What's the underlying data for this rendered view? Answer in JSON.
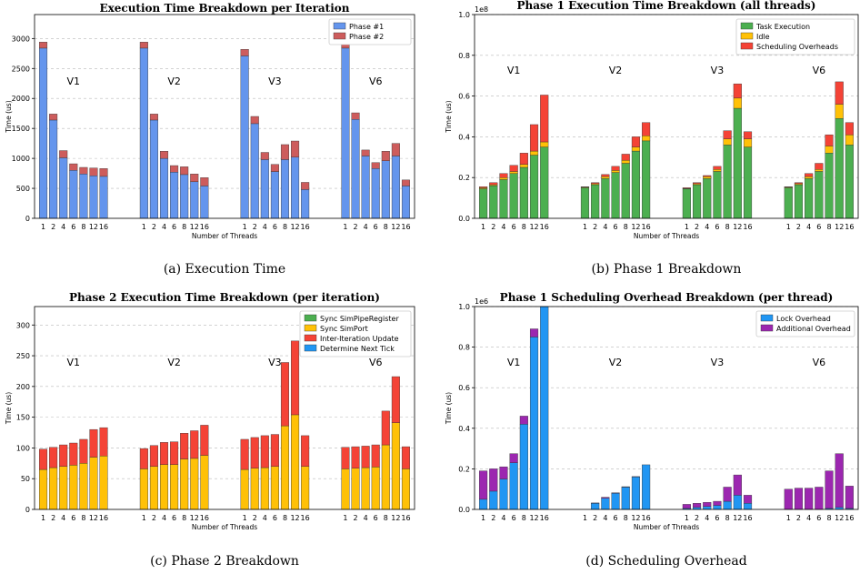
{
  "chart_data": [
    {
      "type": "bar",
      "stacked": true,
      "title": "Execution Time Breakdown per Iteration",
      "xlabel": "Number of Threads",
      "ylabel": "Time (us)",
      "ylim": [
        0,
        3400
      ],
      "yticks": [
        0,
        500,
        1000,
        1500,
        2000,
        2500,
        3000
      ],
      "ytick_labels": [
        "0",
        "500",
        "1000",
        "1500",
        "2000",
        "2500",
        "3000"
      ],
      "scale_label": "",
      "grid": true,
      "legend": "top-right",
      "categories": [
        "1",
        "2",
        "4",
        "6",
        "8",
        "12",
        "16"
      ],
      "groups": [
        "V1",
        "V2",
        "V3",
        "V6"
      ],
      "series": [
        {
          "name": "Phase #1",
          "color": "#6495ed",
          "values": [
            [
              2840,
              1640,
              1010,
              800,
              740,
              710,
              700
            ],
            [
              2840,
              1640,
              1000,
              770,
              730,
              610,
              540
            ],
            [
              2710,
              1580,
              980,
              780,
              980,
              1020,
              480
            ],
            [
              2840,
              1650,
              1040,
              830,
              960,
              1040,
              540
            ]
          ]
        },
        {
          "name": "Phase #2",
          "color": "#cd5c5c",
          "values": [
            [
              100,
              100,
              120,
              110,
              110,
              130,
              130
            ],
            [
              100,
              100,
              120,
              110,
              130,
              130,
              140
            ],
            [
              110,
              120,
              120,
              120,
              250,
              270,
              120
            ],
            [
              100,
              110,
              100,
              100,
              160,
              210,
              100
            ]
          ]
        }
      ],
      "caption": "(a) Execution Time"
    },
    {
      "type": "bar",
      "stacked": true,
      "title": "Phase 1 Execution Time Breakdown (all threads)",
      "xlabel": "Number of Threads",
      "ylabel": "Time (us)",
      "ylim": [
        0,
        1.0
      ],
      "yticks": [
        0,
        0.2,
        0.4,
        0.6,
        0.8,
        1.0
      ],
      "ytick_labels": [
        "0.0",
        "0.2",
        "0.4",
        "0.6",
        "0.8",
        "1.0"
      ],
      "scale_label": "1e8",
      "grid": true,
      "legend": "top-right",
      "categories": [
        "1",
        "2",
        "4",
        "6",
        "8",
        "12",
        "16"
      ],
      "groups": [
        "V1",
        "V2",
        "V3",
        "V6"
      ],
      "series": [
        {
          "name": "Task Execution",
          "color": "#4caf50",
          "values": [
            [
              0.145,
              0.16,
              0.19,
              0.22,
              0.25,
              0.31,
              0.35
            ],
            [
              0.15,
              0.165,
              0.195,
              0.225,
              0.27,
              0.33,
              0.38
            ],
            [
              0.145,
              0.165,
              0.195,
              0.23,
              0.36,
              0.54,
              0.35
            ],
            [
              0.15,
              0.165,
              0.195,
              0.23,
              0.32,
              0.49,
              0.36
            ]
          ]
        },
        {
          "name": "Idle",
          "color": "#ffc107",
          "values": [
            [
              0.005,
              0.005,
              0.01,
              0.01,
              0.015,
              0.02,
              0.025
            ],
            [
              0.003,
              0.005,
              0.01,
              0.01,
              0.015,
              0.02,
              0.025
            ],
            [
              0.002,
              0.005,
              0.01,
              0.01,
              0.03,
              0.05,
              0.04
            ],
            [
              0.003,
              0.005,
              0.01,
              0.01,
              0.035,
              0.07,
              0.05
            ]
          ]
        },
        {
          "name": "Scheduling Overheads",
          "color": "#f44336",
          "values": [
            [
              0.005,
              0.01,
              0.02,
              0.03,
              0.055,
              0.13,
              0.23
            ],
            [
              0.002,
              0.005,
              0.01,
              0.02,
              0.03,
              0.05,
              0.065
            ],
            [
              0.003,
              0.005,
              0.005,
              0.015,
              0.04,
              0.07,
              0.035
            ],
            [
              0.002,
              0.005,
              0.015,
              0.03,
              0.055,
              0.11,
              0.06
            ]
          ]
        }
      ],
      "caption": "(b) Phase 1 Breakdown"
    },
    {
      "type": "bar",
      "stacked": true,
      "title": "Phase 2 Execution Time Breakdown (per iteration)",
      "xlabel": "Number of Threads",
      "ylabel": "Time (us)",
      "ylim": [
        0,
        330
      ],
      "yticks": [
        0,
        50,
        100,
        150,
        200,
        250,
        300
      ],
      "ytick_labels": [
        "0",
        "50",
        "100",
        "150",
        "200",
        "250",
        "300"
      ],
      "scale_label": "",
      "grid": true,
      "legend": "top-right",
      "categories": [
        "1",
        "2",
        "4",
        "6",
        "8",
        "12",
        "16"
      ],
      "groups": [
        "V1",
        "V2",
        "V3",
        "V6"
      ],
      "series": [
        {
          "name": "Sync SimPipeRegister",
          "color": "#4caf50",
          "values": [
            [
              0,
              0,
              0,
              0,
              0,
              0,
              0
            ],
            [
              0,
              0,
              0,
              0,
              0,
              0,
              0
            ],
            [
              0,
              0,
              0,
              0,
              0,
              0,
              0
            ],
            [
              0,
              0,
              0,
              0,
              0,
              0,
              0
            ]
          ]
        },
        {
          "name": "Sync SimPort",
          "color": "#ffc107",
          "values": [
            [
              65,
              68,
              70,
              72,
              75,
              85,
              87
            ],
            [
              66,
              70,
              73,
              73,
              82,
              83,
              88
            ],
            [
              65,
              67,
              68,
              70,
              136,
              154,
              70
            ],
            [
              66,
              67,
              68,
              69,
              105,
              141,
              66
            ]
          ]
        },
        {
          "name": "Inter-Iteration Update",
          "color": "#f44336",
          "values": [
            [
              33,
              33,
              35,
              36,
              39,
              45,
              46
            ],
            [
              33,
              34,
              36,
              37,
              42,
              45,
              49
            ],
            [
              49,
              50,
              52,
              52,
              103,
              120,
              50
            ],
            [
              35,
              35,
              35,
              36,
              55,
              75,
              36
            ]
          ]
        },
        {
          "name": "Determine Next Tick",
          "color": "#2196f3",
          "values": [
            [
              0,
              0,
              0,
              0,
              0,
              0,
              0
            ],
            [
              0,
              0,
              0,
              0,
              0,
              0,
              0
            ],
            [
              0,
              0,
              0,
              0,
              0,
              0,
              0
            ],
            [
              0,
              0,
              0,
              0,
              0,
              0,
              0
            ]
          ]
        }
      ],
      "caption": "(c) Phase 2 Breakdown"
    },
    {
      "type": "bar",
      "stacked": true,
      "title": "Phase 1 Scheduling Overhead Breakdown (per thread)",
      "xlabel": "Number of Threads",
      "ylabel": "Time (us)",
      "ylim": [
        0,
        1.0
      ],
      "yticks": [
        0,
        0.2,
        0.4,
        0.6,
        0.8,
        1.0
      ],
      "ytick_labels": [
        "0.0",
        "0.2",
        "0.4",
        "0.6",
        "0.8",
        "1.0"
      ],
      "scale_label": "1e6",
      "grid": true,
      "legend": "top-right",
      "categories": [
        "1",
        "2",
        "4",
        "6",
        "8",
        "12",
        "16"
      ],
      "groups": [
        "V1",
        "V2",
        "V3",
        "V6"
      ],
      "series": [
        {
          "name": "Lock Overhead",
          "color": "#2196f3",
          "values": [
            [
              0.05,
              0.09,
              0.15,
              0.23,
              0.42,
              0.85,
              1.0
            ],
            [
              0,
              0.03,
              0.055,
              0.08,
              0.11,
              0.16,
              0.22
            ],
            [
              0.005,
              0.01,
              0.015,
              0.02,
              0.04,
              0.07,
              0.03
            ],
            [
              0,
              0,
              0,
              0,
              0.005,
              0.01,
              0.005
            ]
          ]
        },
        {
          "name": "Additional Overhead",
          "color": "#9c27b0",
          "values": [
            [
              0.14,
              0.11,
              0.06,
              0.045,
              0.04,
              0.04,
              0
            ],
            [
              0,
              0.002,
              0.005,
              0.002,
              0.002,
              0.002,
              0
            ],
            [
              0.02,
              0.02,
              0.02,
              0.02,
              0.07,
              0.1,
              0.04
            ],
            [
              0.1,
              0.105,
              0.105,
              0.11,
              0.185,
              0.265,
              0.11
            ]
          ]
        }
      ],
      "caption": "(d) Scheduling Overhead"
    }
  ]
}
